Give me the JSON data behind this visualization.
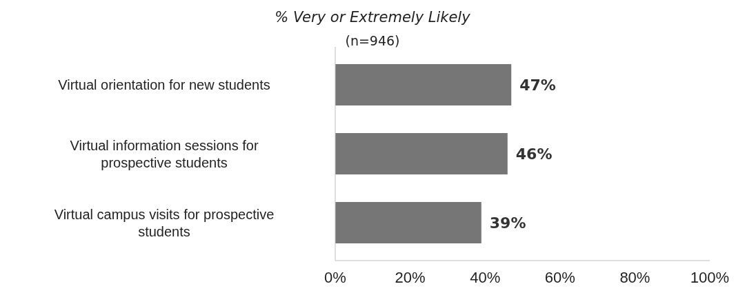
{
  "chart_data": {
    "type": "bar",
    "orientation": "horizontal",
    "subtitle": "% Very or Extremely Likely",
    "annotations": [
      "(n=946)"
    ],
    "categories": [
      "Virtual orientation for new students",
      "Virtual information sessions for prospective students",
      "Virtual campus visits for prospective students"
    ],
    "values": [
      47,
      46,
      39
    ],
    "value_labels": [
      "47%",
      "46%",
      "39%"
    ],
    "color": "#767676",
    "xlim": [
      0,
      100
    ],
    "xticks": [
      {
        "value": 0,
        "label": "0%"
      },
      {
        "value": 20,
        "label": "20%"
      },
      {
        "value": 40,
        "label": "40%"
      },
      {
        "value": 60,
        "label": "60%"
      },
      {
        "value": 80,
        "label": "80%"
      },
      {
        "value": 100,
        "label": "100%"
      }
    ],
    "grid": false
  }
}
